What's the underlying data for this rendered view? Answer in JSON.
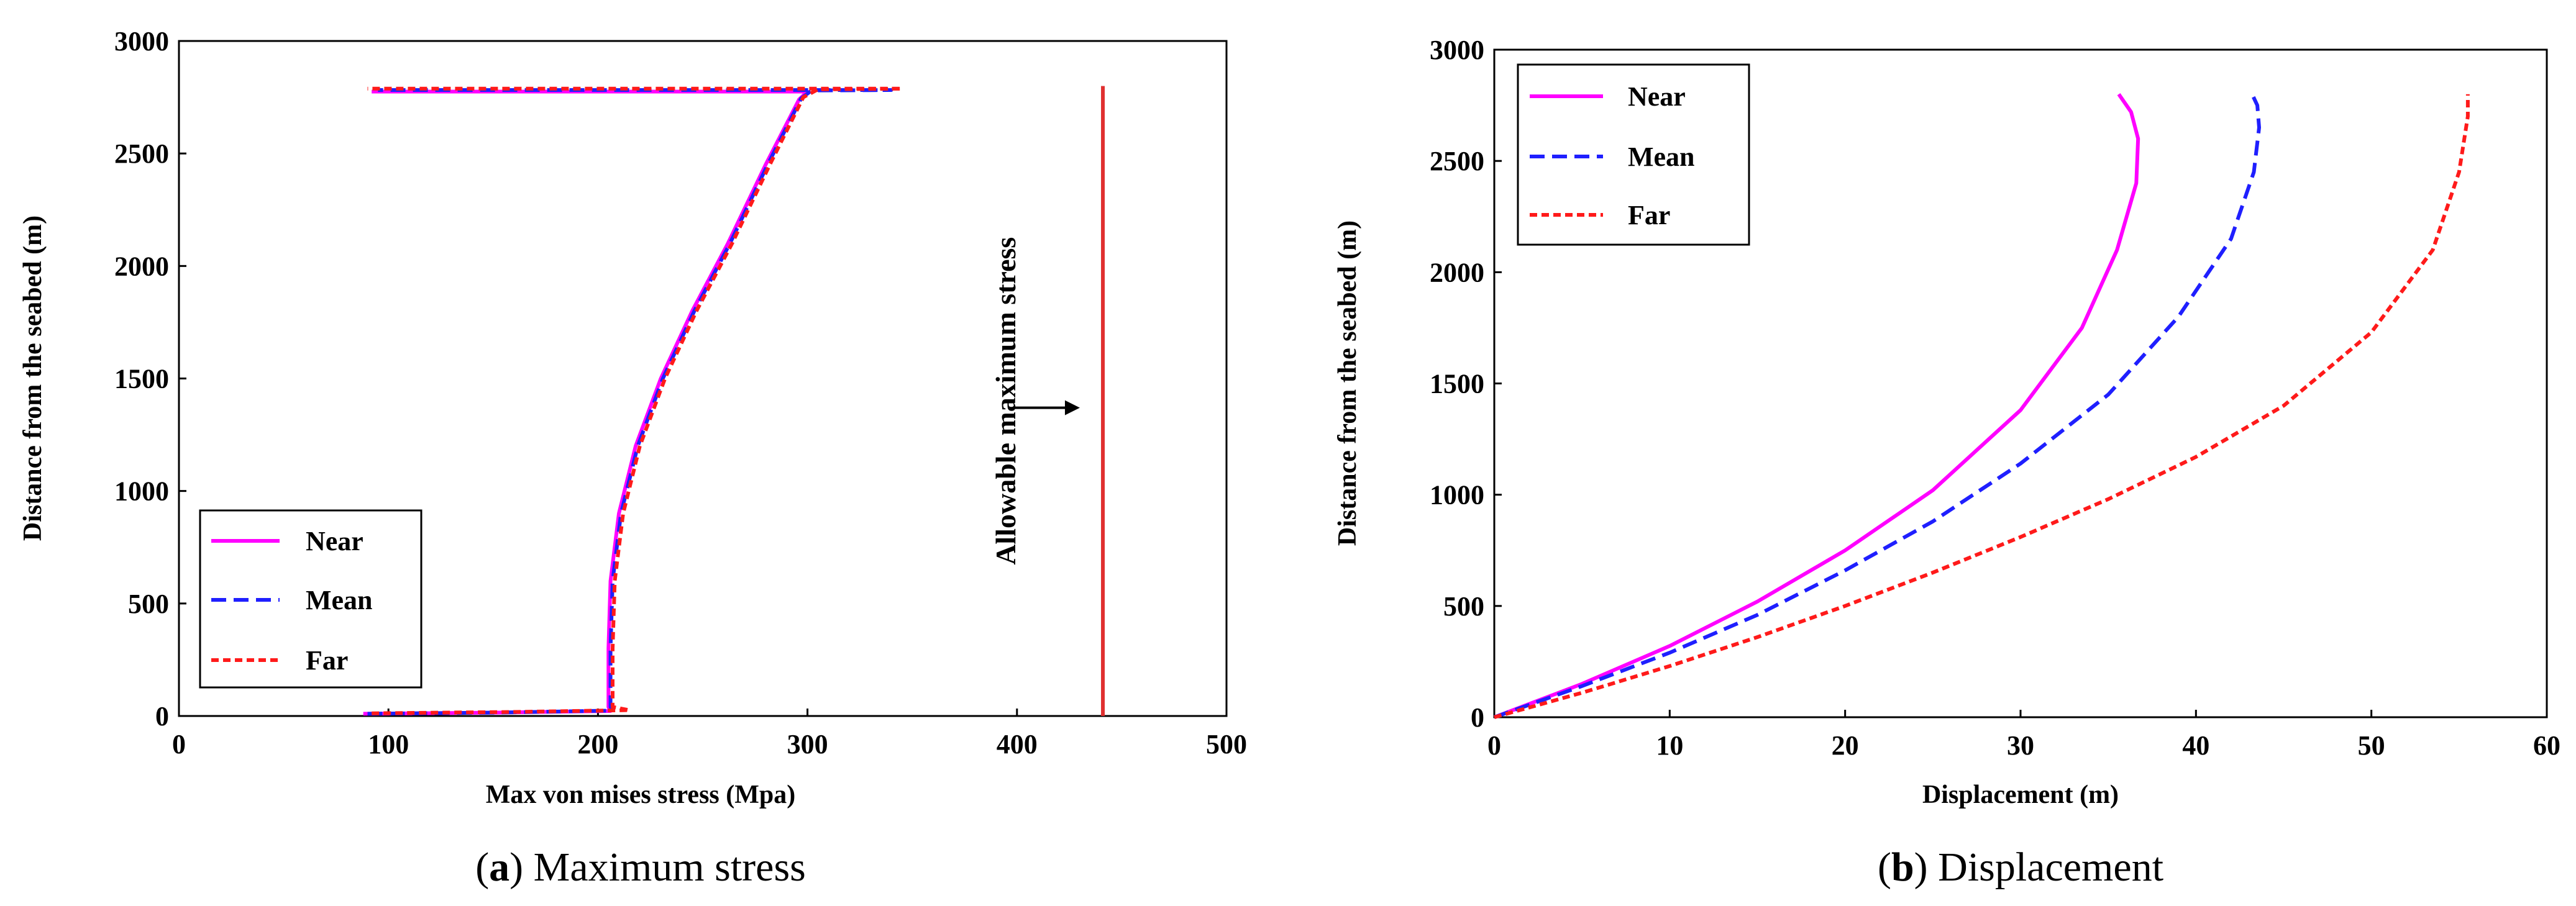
{
  "chart_data": [
    {
      "type": "line",
      "id": "a",
      "caption": {
        "letter": "a",
        "text": "Maximum stress"
      },
      "xlabel": "Max von mises stress (Mpa)",
      "ylabel": "Distance from the seabed (m)",
      "xlim": [
        0,
        500
      ],
      "ylim": [
        0,
        3000
      ],
      "xticks": [
        0,
        100,
        200,
        300,
        400,
        500
      ],
      "yticks": [
        0,
        500,
        1000,
        1500,
        2000,
        2500,
        3000
      ],
      "legend": "bottom-left",
      "series": [
        {
          "name": "Near",
          "color": "#ff00ff",
          "dash": "solid",
          "x": [
            88,
            150,
            206,
            205,
            205,
            206,
            210,
            218,
            230,
            245,
            262,
            280,
            296,
            300,
            250,
            200,
            150,
            92
          ],
          "y": [
            10,
            15,
            22,
            40,
            300,
            600,
            900,
            1200,
            1500,
            1800,
            2100,
            2450,
            2740,
            2775,
            2775,
            2775,
            2775,
            2775
          ]
        },
        {
          "name": "Mean",
          "color": "#1f1fff",
          "dash": "long",
          "x": [
            90,
            150,
            207,
            206,
            206,
            207,
            211,
            219,
            231,
            246,
            263,
            281,
            297,
            302,
            340,
            280,
            200,
            95
          ],
          "y": [
            10,
            15,
            24,
            40,
            300,
            600,
            900,
            1200,
            1500,
            1800,
            2100,
            2450,
            2745,
            2780,
            2782,
            2782,
            2782,
            2782
          ]
        },
        {
          "name": "Far",
          "color": "#ff1a1a",
          "dash": "short",
          "x": [
            92,
            160,
            215,
            207,
            207,
            208,
            212,
            220,
            232,
            247,
            264,
            282,
            298,
            305,
            345,
            280,
            200,
            90
          ],
          "y": [
            12,
            18,
            26,
            40,
            300,
            600,
            900,
            1200,
            1500,
            1800,
            2100,
            2450,
            2750,
            2785,
            2788,
            2788,
            2788,
            2788
          ]
        }
      ],
      "reference_line": {
        "label": "Allowable  maximum stress",
        "x": 441,
        "y": [
          0,
          2800
        ],
        "color": "#e03030",
        "arrow_tip": [
          430,
          1370
        ],
        "arrow_tail": [
          398,
          1370
        ]
      }
    },
    {
      "type": "line",
      "id": "b",
      "caption": {
        "letter": "b",
        "text": "Displacement"
      },
      "xlabel": "Displacement (m)",
      "ylabel": "Distance from the seabed (m)",
      "xlim": [
        0,
        60
      ],
      "ylim": [
        0,
        3000
      ],
      "xticks": [
        0,
        10,
        20,
        30,
        40,
        50,
        60
      ],
      "yticks": [
        0,
        500,
        1000,
        1500,
        2000,
        2500,
        3000
      ],
      "legend": "top-left",
      "series": [
        {
          "name": "Near",
          "color": "#ff00ff",
          "dash": "solid",
          "x": [
            0,
            5,
            10,
            15,
            20,
            25,
            30,
            33.5,
            35.5,
            36.6,
            36.7,
            36.3,
            35.6
          ],
          "y": [
            0,
            150,
            320,
            520,
            750,
            1020,
            1380,
            1750,
            2100,
            2400,
            2600,
            2720,
            2800
          ]
        },
        {
          "name": "Mean",
          "color": "#1f1fff",
          "dash": "long",
          "x": [
            0,
            5,
            10,
            15,
            20,
            25,
            30,
            35,
            39,
            42,
            43.3,
            43.6,
            43.5,
            43.2
          ],
          "y": [
            0,
            140,
            290,
            460,
            660,
            880,
            1140,
            1450,
            1800,
            2150,
            2450,
            2650,
            2750,
            2800
          ]
        },
        {
          "name": "Far",
          "color": "#ff1a1a",
          "dash": "short",
          "x": [
            0,
            5,
            10,
            15,
            20,
            25,
            30,
            35,
            40,
            45,
            50,
            53.5,
            55,
            55.5,
            55.5
          ],
          "y": [
            0,
            110,
            230,
            360,
            500,
            650,
            810,
            980,
            1170,
            1400,
            1730,
            2100,
            2450,
            2700,
            2800
          ]
        }
      ]
    }
  ]
}
